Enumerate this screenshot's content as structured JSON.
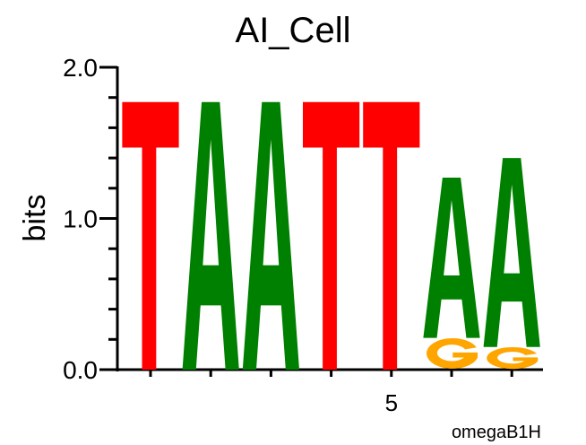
{
  "chart_data": {
    "type": "sequence-logo",
    "title": "AI_Cell",
    "ylabel": "bits",
    "xlabel": "omegaB1H",
    "ylim": [
      0,
      2.0
    ],
    "y_ticks": [
      "0.0",
      "1.0",
      "2.0"
    ],
    "y_minor_step": 0.2,
    "x_positions": [
      1,
      2,
      3,
      4,
      5,
      6,
      7
    ],
    "x_tick_labels": [
      {
        "position": 5,
        "label": "5"
      }
    ],
    "colors": {
      "A": "#008000",
      "T": "#ff0000",
      "G": "#ffa500",
      "C": "#0000ff"
    },
    "columns": [
      {
        "position": 1,
        "letters": [
          {
            "base": "T",
            "bits": 1.77
          }
        ]
      },
      {
        "position": 2,
        "letters": [
          {
            "base": "A",
            "bits": 1.77
          }
        ]
      },
      {
        "position": 3,
        "letters": [
          {
            "base": "A",
            "bits": 1.77
          }
        ]
      },
      {
        "position": 4,
        "letters": [
          {
            "base": "T",
            "bits": 1.77
          }
        ]
      },
      {
        "position": 5,
        "letters": [
          {
            "base": "T",
            "bits": 1.77
          }
        ]
      },
      {
        "position": 6,
        "letters": [
          {
            "base": "G",
            "bits": 0.21
          },
          {
            "base": "A",
            "bits": 1.06
          }
        ]
      },
      {
        "position": 7,
        "letters": [
          {
            "base": "G",
            "bits": 0.15
          },
          {
            "base": "A",
            "bits": 1.25
          }
        ]
      }
    ]
  }
}
